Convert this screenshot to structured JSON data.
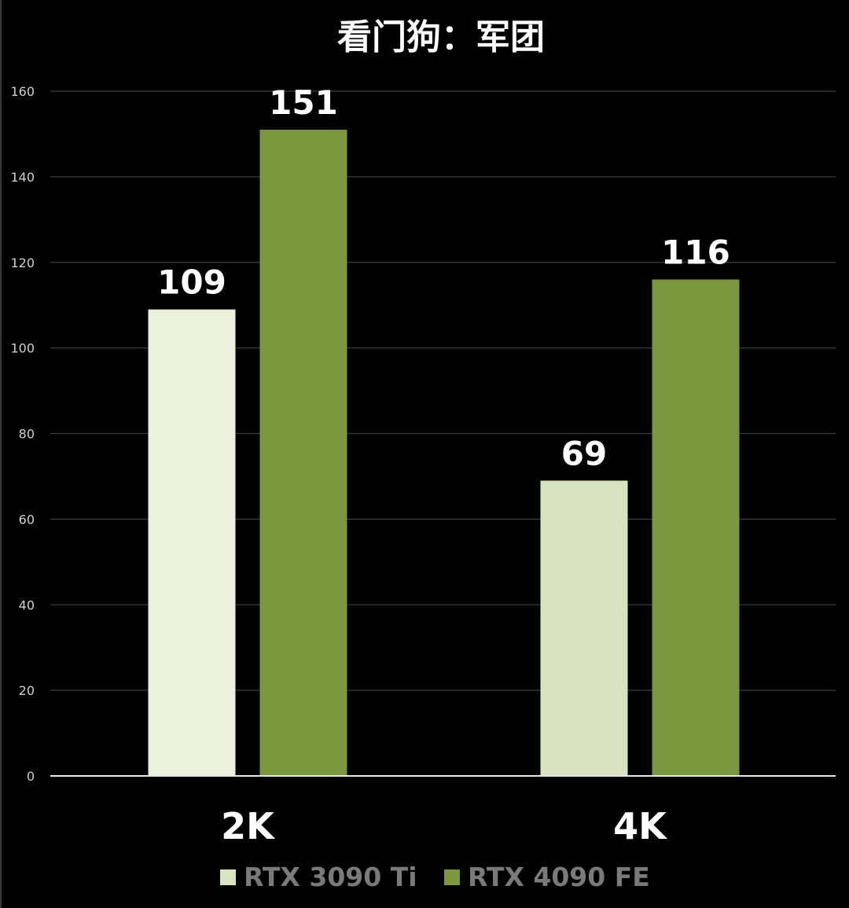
{
  "colors": {
    "background": "#000000",
    "grid": "#3c3c3c",
    "axis": "#e6e6e6",
    "text": "#ffffff",
    "tick_text": "#d0d0d0",
    "legend_text": "#7a7a7a"
  },
  "chart_data": {
    "type": "bar",
    "title": "看门狗：军团",
    "xlabel": "",
    "ylabel": "",
    "categories": [
      "2K",
      "4K"
    ],
    "series": [
      {
        "name": "RTX 3090 Ti",
        "values": [
          109,
          69
        ],
        "colors": [
          "#ebf0dd",
          "#d8e3bf"
        ]
      },
      {
        "name": "RTX 4090 FE",
        "values": [
          151,
          116
        ],
        "colors": [
          "#7a963f",
          "#7a963f"
        ]
      }
    ],
    "legend_colors": [
      "#d8e3bf",
      "#7a963f"
    ],
    "ylim": [
      0,
      160
    ],
    "yticks": [
      "0",
      "20",
      "40",
      "60",
      "80",
      "100",
      "120",
      "140",
      "160"
    ],
    "data_labels": true,
    "grid": true,
    "legend_position": "bottom"
  }
}
